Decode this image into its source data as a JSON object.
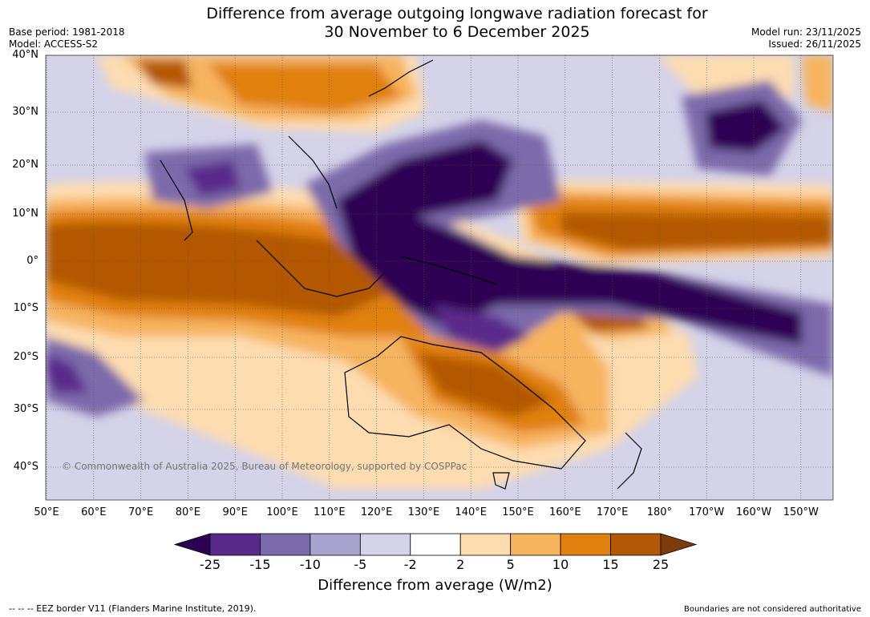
{
  "title_line1": "Difference from average outgoing longwave radiation forecast for",
  "title_line2": "30 November to 6 December 2025",
  "base_period": "Base period: 1981-2018",
  "model": "Model: ACCESS-S2",
  "model_run": "Model run: 23/11/2025",
  "issued": "Issued: 26/11/2025",
  "copyright": "© Commonwealth of Australia 2025, Bureau of Meteorology, supported by COSPPac",
  "footer_left": "-- -- -- EEZ border V11 (Flanders Marine Institute, 2019).",
  "footer_right": "Boundaries are not considered authoritative",
  "colorbar_title": "Difference from average (W/m2)",
  "colorbar_ticks": [
    "-25",
    "-15",
    "-10",
    "-5",
    "-2",
    "2",
    "5",
    "10",
    "15",
    "25"
  ],
  "colorbar_colors": [
    "#2d0052",
    "#5a2a8a",
    "#7b6aaa",
    "#a9a3cf",
    "#d4d3e8",
    "#ffffff",
    "#fddcb0",
    "#f6b45f",
    "#e0800f",
    "#b35806",
    "#7f3b08"
  ],
  "lat_labels": [
    "40°N",
    "30°N",
    "20°N",
    "10°N",
    "0°",
    "10°S",
    "20°S",
    "30°S",
    "40°S"
  ],
  "lon_labels": [
    "50°E",
    "60°E",
    "70°E",
    "80°E",
    "90°E",
    "100°E",
    "110°E",
    "120°E",
    "130°E",
    "140°E",
    "150°E",
    "160°E",
    "170°E",
    "180°",
    "170°W",
    "160°W",
    "150°W"
  ]
}
